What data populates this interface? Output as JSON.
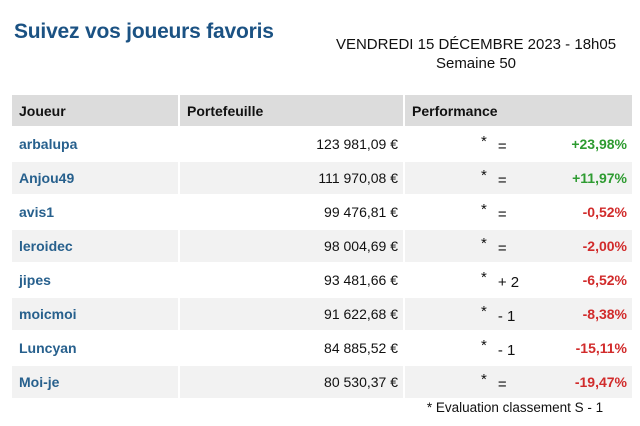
{
  "page": {
    "title": "Suivez vos joueurs favoris",
    "date_line": "VENDREDI 15 DÉCEMBRE 2023 - 18h05",
    "week_line": "Semaine 50",
    "footnote": "* Evaluation classement S - 1"
  },
  "colors": {
    "title_blue": "#1b5283",
    "player_blue": "#27608d",
    "positive_green": "#2e9b31",
    "negative_red": "#d12b2b",
    "header_bg": "#dcdcdc",
    "alt_row_bg": "#f2f2f2"
  },
  "table": {
    "headers": {
      "player": "Joueur",
      "portfolio": "Portefeuille",
      "performance": "Performance"
    },
    "rank_marker": "*",
    "rows": [
      {
        "player": "arbalupa",
        "portfolio": "123 981,09 €",
        "rank_change": "=",
        "performance": "+23,98%",
        "trend": "up"
      },
      {
        "player": "Anjou49",
        "portfolio": "111 970,08 €",
        "rank_change": "=",
        "performance": "+11,97%",
        "trend": "up"
      },
      {
        "player": "avis1",
        "portfolio": "99 476,81 €",
        "rank_change": "=",
        "performance": "-0,52%",
        "trend": "down"
      },
      {
        "player": "leroidec",
        "portfolio": "98 004,69 €",
        "rank_change": "=",
        "performance": "-2,00%",
        "trend": "down"
      },
      {
        "player": "jipes",
        "portfolio": "93 481,66 €",
        "rank_change": "+ 2",
        "performance": "-6,52%",
        "trend": "down"
      },
      {
        "player": "moicmoi",
        "portfolio": "91 622,68 €",
        "rank_change": "- 1",
        "performance": "-8,38%",
        "trend": "down"
      },
      {
        "player": "Luncyan",
        "portfolio": "84 885,52 €",
        "rank_change": "- 1",
        "performance": "-15,11%",
        "trend": "down"
      },
      {
        "player": "Moi-je",
        "portfolio": "80 530,37 €",
        "rank_change": "=",
        "performance": "-19,47%",
        "trend": "down"
      }
    ]
  }
}
